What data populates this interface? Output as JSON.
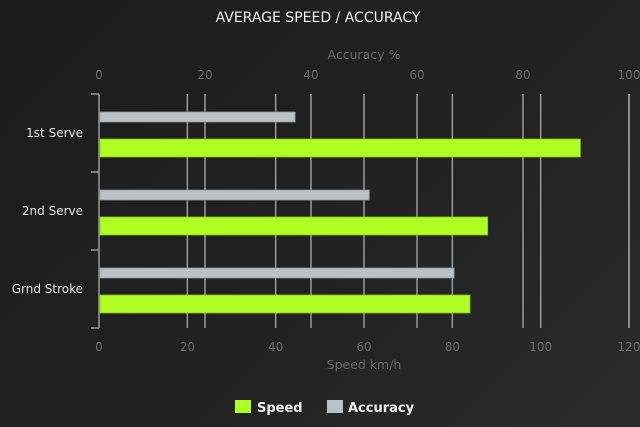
{
  "chart_data": {
    "type": "bar",
    "orientation": "horizontal",
    "title": "AVERAGE SPEED / ACCURACY",
    "categories": [
      "1st Serve",
      "2nd Serve",
      "Grnd Stroke"
    ],
    "series": [
      {
        "name": "Speed",
        "values": [
          109,
          88,
          84
        ],
        "color": "#b0ff24",
        "axis": "bottom"
      },
      {
        "name": "Accuracy",
        "values": [
          37,
          51,
          67
        ],
        "color": "#bdc1c3",
        "axis": "top"
      }
    ],
    "x_bottom": {
      "label": "Speed km/h",
      "range": [
        0,
        120
      ],
      "ticks": [
        0,
        20,
        40,
        60,
        80,
        100,
        120
      ]
    },
    "x_top": {
      "label": "Accuracy %",
      "range": [
        0,
        100
      ],
      "ticks": [
        0,
        20,
        40,
        60,
        80,
        100
      ]
    },
    "grid": true,
    "legend": "bottom"
  }
}
